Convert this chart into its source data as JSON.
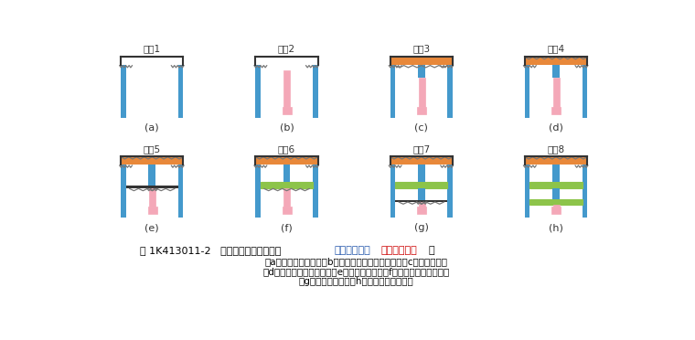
{
  "bg_color": "#ffffff",
  "steps": [
    "步骤1",
    "步骤2",
    "步骤3",
    "步骤4",
    "步骤5",
    "步骤6",
    "步骤7",
    "步骤8"
  ],
  "labels": [
    "(a)",
    "(b)",
    "(c)",
    "(d)",
    "(e)",
    "(f)",
    "(g)",
    "(h)"
  ],
  "colors": {
    "wall_blue": "#4499CC",
    "roof_orange": "#E8883A",
    "inner_green": "#8DC44A",
    "pile_pink": "#F4A8B8",
    "hatch_color": "#777777",
    "border_black": "#333333",
    "white": "#ffffff",
    "text_dark": "#333333",
    "title_black": "#000000",
    "title_blue": "#2255AA",
    "title_red": "#CC0000"
  },
  "caption_line1": "（a）构筑围护结构；（b）构筑主体结构中间立柱；（c）构筑顶板；",
  "caption_line2": "（d）回填土、恢复路面；（e）开挖中层土；（f）构筑上层主体结构；",
  "caption_line3": "（g）开挖下层土；（h）构筑下层主体结构"
}
